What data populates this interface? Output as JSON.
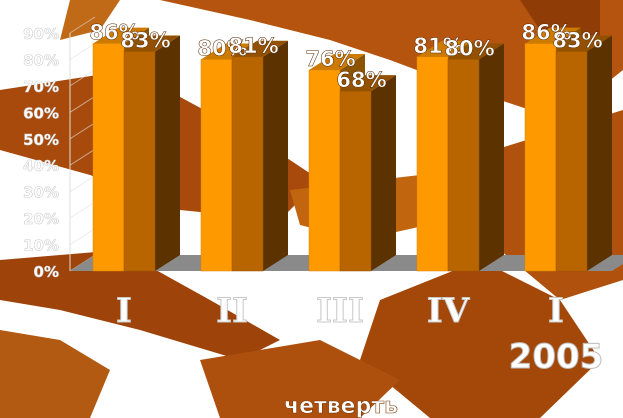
{
  "chart_data": {
    "type": "bar",
    "categories": [
      "I",
      "II",
      "III",
      "IV",
      "I"
    ],
    "category_group_label": "2005",
    "xlabel": "четверть",
    "ylim": [
      0,
      90
    ],
    "yticks": [
      "0%",
      "10%",
      "20%",
      "30%",
      "40%",
      "50%",
      "60%",
      "70%",
      "80%",
      "90%"
    ],
    "series": [
      {
        "values": [
          86,
          80,
          76,
          81,
          86
        ],
        "labels": [
          "86%",
          "80%",
          "76%",
          "81%",
          "86%"
        ],
        "color": "#ff9900"
      },
      {
        "values": [
          83,
          81,
          68,
          80,
          83
        ],
        "labels": [
          "83%",
          "81%",
          "68%",
          "80%",
          "83%"
        ],
        "color": "#b86500"
      }
    ],
    "floor_color": "#8a8a8a",
    "background_color": "#a84a0c"
  }
}
